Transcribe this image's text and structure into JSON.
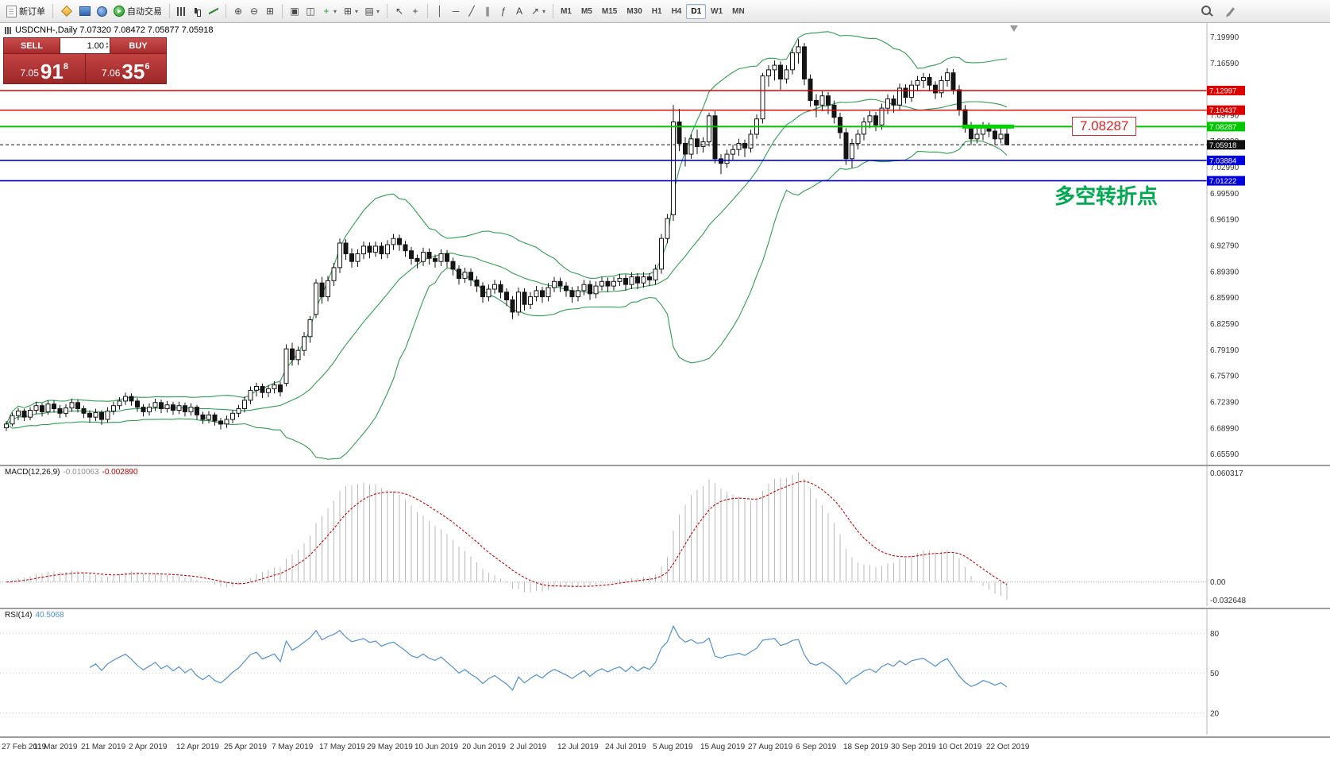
{
  "toolbar": {
    "timeframes": [
      "M1",
      "M5",
      "M15",
      "M30",
      "H1",
      "H4",
      "D1",
      "W1",
      "MN"
    ],
    "active_timeframe": "D1",
    "icon_groups": [
      {
        "items": [
          {
            "name": "new-order-button",
            "icon": "form-icon",
            "label": "新订单"
          }
        ]
      },
      {
        "items": [
          {
            "name": "charts-profile-button",
            "icon": "diamond-icon"
          },
          {
            "name": "market-watch-button",
            "icon": "monitor-icon"
          },
          {
            "name": "navigator-button",
            "icon": "navigator-icon"
          },
          {
            "name": "auto-trading-button",
            "icon": "play-icon",
            "label": "自动交易"
          }
        ]
      },
      {
        "items": [
          {
            "name": "bar-chart-button",
            "icon": "bars-icon"
          },
          {
            "name": "candle-chart-button",
            "icon": "candles-icon"
          },
          {
            "name": "line-chart-button",
            "icon": "linechart-icon"
          }
        ]
      },
      {
        "items": [
          {
            "name": "zoom-in-button",
            "icon": "zoom-in-icon",
            "glyph": "⊕"
          },
          {
            "name": "zoom-out-button",
            "icon": "zoom-out-icon",
            "glyph": "⊖"
          },
          {
            "name": "tile-windows-button",
            "icon": "tile-windows-icon",
            "glyph": "⊞"
          }
        ]
      },
      {
        "items": [
          {
            "name": "cascade-windows-button",
            "icon": "cascade-windows-icon",
            "glyph": "▣"
          },
          {
            "name": "arrange-windows-button",
            "icon": "arrange-windows-icon",
            "glyph": "◫"
          },
          {
            "name": "indicators-button",
            "icon": "indicator-plus-icon",
            "glyph": "+",
            "color": "#1d9e1d",
            "arrow": true
          },
          {
            "name": "periods-button",
            "icon": "periods-grid-icon",
            "glyph": "⊞",
            "arrow": true
          },
          {
            "name": "templates-button",
            "icon": "template-icon",
            "glyph": "▤",
            "arrow": true
          }
        ]
      },
      {
        "items": [
          {
            "name": "cursor-button",
            "icon": "cursor-icon",
            "glyph": "↖"
          },
          {
            "name": "crosshair-button",
            "icon": "crosshair-icon",
            "glyph": "+"
          }
        ]
      },
      {
        "items": [
          {
            "name": "vertical-line-button",
            "icon": "vertical-line-icon",
            "glyph": "│"
          },
          {
            "name": "horizontal-line-button",
            "icon": "horizontal-line-icon",
            "glyph": "─"
          },
          {
            "name": "trendline-button",
            "icon": "trendline-icon",
            "glyph": "╱"
          },
          {
            "name": "channel-button",
            "icon": "channel-icon",
            "glyph": "∥"
          },
          {
            "name": "fibonacci-button",
            "icon": "fibonacci-icon",
            "glyph": "ƒ"
          },
          {
            "name": "text-button",
            "icon": "text-icon",
            "glyph": "A"
          },
          {
            "name": "arrows-button",
            "icon": "arrow-icon",
            "glyph": "↗",
            "arrow": true
          }
        ]
      }
    ],
    "right_icons": [
      {
        "name": "search-button",
        "icon": "search-icon"
      },
      {
        "name": "compose-button",
        "icon": "pencil-icon"
      }
    ]
  },
  "chart": {
    "symbol_header": "USDCNH-,Daily  7.07320 7.08472 7.05877 7.05918",
    "trade_panel": {
      "sell_label": "SELL",
      "buy_label": "BUY",
      "volume": "1.00",
      "sell_price": {
        "figure": "7.05",
        "pips": "91",
        "pt": "8"
      },
      "buy_price": {
        "figure": "7.06",
        "pips": "35",
        "pt": "6"
      }
    },
    "price_axis_labels": [
      "7.19990",
      "7.16590",
      "7.13190",
      "7.09790",
      "7.06390",
      "7.02990",
      "6.99590",
      "6.96190",
      "6.92790",
      "6.89390",
      "6.85990",
      "6.82590",
      "6.79190",
      "6.75790",
      "6.72390",
      "6.68990",
      "6.65590"
    ],
    "levels": [
      {
        "label": "7.12997",
        "price": 7.12997,
        "color": "#dd0000",
        "style": "solid",
        "width": 1.4
      },
      {
        "label": "7.10437",
        "price": 7.10437,
        "color": "#dd0000",
        "style": "solid",
        "width": 1.4
      },
      {
        "label": "7.08287",
        "price": 7.08287,
        "color": "#00c800",
        "style": "solid",
        "width": 2
      },
      {
        "label": "7.05918",
        "price": 7.05918,
        "color": "#111111",
        "style": "dash",
        "width": 1
      },
      {
        "label": "7.03884",
        "price": 7.03884,
        "color": "#0000dd",
        "style": "solid",
        "width": 1.6
      },
      {
        "label": "7.01222",
        "price": 7.01222,
        "color": "#0000dd",
        "style": "solid",
        "width": 1.6
      }
    ],
    "trend_segment": {
      "price": 7.08287,
      "bar_start": 160.5,
      "bar_end": 169.2,
      "color": "#00d300",
      "width": 5
    },
    "price_tag": {
      "text": "7.08287",
      "color": "#dd2222"
    },
    "annotation": {
      "text": "多空转折点",
      "color": "#00a84f"
    }
  },
  "indicators": {
    "macd": {
      "title": "MACD(12,26,9)",
      "value_main": "-0.010063",
      "value_signal": "-0.002890",
      "axis": [
        "0.060317",
        "0.00",
        "-0.032648"
      ],
      "histogram_color": "#b9b9b9",
      "signal_color": "#cc0000"
    },
    "rsi": {
      "title": "RSI(14)",
      "value": "40.5068",
      "axis": [
        "80",
        "50",
        "20"
      ],
      "levels": [
        80,
        50,
        20
      ],
      "line_color": "#4f8fd4"
    }
  },
  "chart_data": {
    "type": "candlestick",
    "symbol": "USDCNH-",
    "timeframe": "Daily",
    "price_range": [
      6.642,
      7.218
    ],
    "bars_per_label": 8,
    "x_labels": [
      "27 Feb 2019",
      "11 Mar 2019",
      "21 Mar 2019",
      "2 Apr 2019",
      "12 Apr 2019",
      "25 Apr 2019",
      "7 May 2019",
      "17 May 2019",
      "29 May 2019",
      "10 Jun 2019",
      "20 Jun 2019",
      "2 Jul 2019",
      "12 Jul 2019",
      "24 Jul 2019",
      "5 Aug 2019",
      "15 Aug 2019",
      "27 Aug 2019",
      "6 Sep 2019",
      "18 Sep 2019",
      "30 Sep 2019",
      "10 Oct 2019",
      "22 Oct 2019"
    ],
    "overlays": {
      "bollinger": {
        "period": 20,
        "deviation": 2,
        "color": "#2f9e4f"
      }
    },
    "ohlc": [
      [
        6.69,
        6.699,
        6.686,
        6.695
      ],
      [
        6.695,
        6.71,
        6.692,
        6.706
      ],
      [
        6.706,
        6.716,
        6.7,
        6.712
      ],
      [
        6.712,
        6.715,
        6.699,
        6.704
      ],
      [
        6.704,
        6.717,
        6.7,
        6.713
      ],
      [
        6.713,
        6.724,
        6.708,
        6.719
      ],
      [
        6.719,
        6.722,
        6.705,
        6.711
      ],
      [
        6.711,
        6.726,
        6.707,
        6.721
      ],
      [
        6.721,
        6.726,
        6.71,
        6.715
      ],
      [
        6.715,
        6.72,
        6.703,
        6.709
      ],
      [
        6.709,
        6.721,
        6.704,
        6.716
      ],
      [
        6.716,
        6.728,
        6.711,
        6.723
      ],
      [
        6.723,
        6.727,
        6.71,
        6.715
      ],
      [
        6.715,
        6.719,
        6.703,
        6.709
      ],
      [
        6.709,
        6.713,
        6.697,
        6.704
      ],
      [
        6.704,
        6.715,
        6.699,
        6.71
      ],
      [
        6.71,
        6.713,
        6.694,
        6.701
      ],
      [
        6.701,
        6.717,
        6.697,
        6.712
      ],
      [
        6.712,
        6.724,
        6.707,
        6.719
      ],
      [
        6.719,
        6.73,
        6.714,
        6.725
      ],
      [
        6.725,
        6.736,
        6.72,
        6.731
      ],
      [
        6.731,
        6.735,
        6.719,
        6.725
      ],
      [
        6.725,
        6.729,
        6.711,
        6.717
      ],
      [
        6.717,
        6.721,
        6.705,
        6.711
      ],
      [
        6.711,
        6.722,
        6.706,
        6.717
      ],
      [
        6.717,
        6.728,
        6.712,
        6.723
      ],
      [
        6.723,
        6.727,
        6.709,
        6.715
      ],
      [
        6.715,
        6.725,
        6.71,
        6.72
      ],
      [
        6.72,
        6.724,
        6.707,
        6.713
      ],
      [
        6.713,
        6.724,
        6.708,
        6.719
      ],
      [
        6.719,
        6.723,
        6.705,
        6.711
      ],
      [
        6.711,
        6.722,
        6.706,
        6.717
      ],
      [
        6.717,
        6.72,
        6.701,
        6.707
      ],
      [
        6.707,
        6.711,
        6.695,
        6.701
      ],
      [
        6.701,
        6.712,
        6.696,
        6.707
      ],
      [
        6.707,
        6.71,
        6.693,
        6.699
      ],
      [
        6.699,
        6.703,
        6.688,
        6.695
      ],
      [
        6.695,
        6.706,
        6.69,
        6.701
      ],
      [
        6.701,
        6.713,
        6.696,
        6.709
      ],
      [
        6.709,
        6.72,
        6.704,
        6.715
      ],
      [
        6.715,
        6.731,
        6.71,
        6.726
      ],
      [
        6.726,
        6.744,
        6.721,
        6.739
      ],
      [
        6.739,
        6.749,
        6.731,
        6.744
      ],
      [
        6.744,
        6.748,
        6.729,
        6.736
      ],
      [
        6.736,
        6.746,
        6.73,
        6.741
      ],
      [
        6.741,
        6.751,
        6.735,
        6.746
      ],
      [
        6.746,
        6.75,
        6.731,
        6.737
      ],
      [
        6.748,
        6.799,
        6.744,
        6.793
      ],
      [
        6.793,
        6.801,
        6.771,
        6.779
      ],
      [
        6.779,
        6.796,
        6.772,
        6.791
      ],
      [
        6.791,
        6.815,
        6.784,
        6.809
      ],
      [
        6.809,
        6.836,
        6.801,
        6.831
      ],
      [
        6.838,
        6.884,
        6.833,
        6.879
      ],
      [
        6.879,
        6.887,
        6.852,
        6.861
      ],
      [
        6.861,
        6.888,
        6.855,
        6.882
      ],
      [
        6.882,
        6.905,
        6.875,
        6.899
      ],
      [
        6.899,
        6.937,
        6.892,
        6.931
      ],
      [
        6.931,
        6.936,
        6.909,
        6.917
      ],
      [
        6.917,
        6.924,
        6.899,
        6.907
      ],
      [
        6.907,
        6.923,
        6.9,
        6.917
      ],
      [
        6.917,
        6.933,
        6.91,
        6.927
      ],
      [
        6.927,
        6.932,
        6.911,
        6.919
      ],
      [
        6.919,
        6.933,
        6.913,
        6.927
      ],
      [
        6.927,
        6.932,
        6.91,
        6.917
      ],
      [
        6.917,
        6.935,
        6.911,
        6.929
      ],
      [
        6.929,
        6.943,
        6.922,
        6.937
      ],
      [
        6.937,
        6.942,
        6.921,
        6.929
      ],
      [
        6.929,
        6.934,
        6.913,
        6.921
      ],
      [
        6.921,
        6.926,
        6.903,
        6.911
      ],
      [
        6.911,
        6.916,
        6.898,
        6.907
      ],
      [
        6.907,
        6.925,
        6.901,
        6.919
      ],
      [
        6.919,
        6.924,
        6.903,
        6.911
      ],
      [
        6.911,
        6.916,
        6.899,
        6.907
      ],
      [
        6.907,
        6.923,
        6.901,
        6.917
      ],
      [
        6.917,
        6.922,
        6.899,
        6.907
      ],
      [
        6.907,
        6.912,
        6.889,
        6.897
      ],
      [
        6.897,
        6.902,
        6.877,
        6.885
      ],
      [
        6.885,
        6.899,
        6.879,
        6.893
      ],
      [
        6.893,
        6.898,
        6.875,
        6.883
      ],
      [
        6.883,
        6.888,
        6.867,
        6.875
      ],
      [
        6.875,
        6.88,
        6.853,
        6.861
      ],
      [
        6.861,
        6.877,
        6.855,
        6.871
      ],
      [
        6.871,
        6.883,
        6.865,
        6.877
      ],
      [
        6.877,
        6.882,
        6.859,
        6.867
      ],
      [
        6.867,
        6.872,
        6.849,
        6.857
      ],
      [
        6.857,
        6.862,
        6.832,
        6.841
      ],
      [
        6.841,
        6.873,
        6.836,
        6.867
      ],
      [
        6.867,
        6.872,
        6.843,
        6.851
      ],
      [
        6.851,
        6.867,
        6.845,
        6.861
      ],
      [
        6.861,
        6.875,
        6.855,
        6.869
      ],
      [
        6.869,
        6.874,
        6.853,
        6.861
      ],
      [
        6.861,
        6.879,
        6.855,
        6.873
      ],
      [
        6.873,
        6.887,
        6.867,
        6.881
      ],
      [
        6.881,
        6.886,
        6.867,
        6.875
      ],
      [
        6.875,
        6.88,
        6.861,
        6.869
      ],
      [
        6.869,
        6.874,
        6.853,
        6.861
      ],
      [
        6.861,
        6.875,
        6.855,
        6.869
      ],
      [
        6.869,
        6.883,
        6.863,
        6.877
      ],
      [
        6.877,
        6.882,
        6.857,
        6.865
      ],
      [
        6.865,
        6.881,
        6.859,
        6.875
      ],
      [
        6.875,
        6.887,
        6.869,
        6.881
      ],
      [
        6.881,
        6.886,
        6.867,
        6.875
      ],
      [
        6.875,
        6.887,
        6.869,
        6.881
      ],
      [
        6.881,
        6.891,
        6.875,
        6.885
      ],
      [
        6.885,
        6.89,
        6.869,
        6.877
      ],
      [
        6.877,
        6.893,
        6.871,
        6.887
      ],
      [
        6.887,
        6.892,
        6.871,
        6.879
      ],
      [
        6.879,
        6.893,
        6.873,
        6.887
      ],
      [
        6.887,
        6.892,
        6.875,
        6.883
      ],
      [
        6.883,
        6.903,
        6.877,
        6.897
      ],
      [
        6.897,
        6.943,
        6.891,
        6.937
      ],
      [
        6.937,
        6.969,
        6.931,
        6.963
      ],
      [
        6.968,
        7.111,
        6.96,
        7.089
      ],
      [
        7.089,
        7.106,
        7.051,
        7.061
      ],
      [
        7.061,
        7.069,
        7.031,
        7.047
      ],
      [
        7.047,
        7.073,
        7.041,
        7.067
      ],
      [
        7.067,
        7.079,
        7.047,
        7.057
      ],
      [
        7.057,
        7.069,
        7.049,
        7.063
      ],
      [
        7.063,
        7.101,
        7.057,
        7.097
      ],
      [
        7.097,
        7.103,
        7.035,
        7.041
      ],
      [
        7.041,
        7.047,
        7.021,
        7.035
      ],
      [
        7.035,
        7.053,
        7.029,
        7.047
      ],
      [
        7.047,
        7.059,
        7.039,
        7.053
      ],
      [
        7.053,
        7.067,
        7.045,
        7.061
      ],
      [
        7.061,
        7.066,
        7.043,
        7.055
      ],
      [
        7.055,
        7.079,
        7.049,
        7.073
      ],
      [
        7.073,
        7.099,
        7.067,
        7.093
      ],
      [
        7.093,
        7.153,
        7.087,
        7.149
      ],
      [
        7.149,
        7.163,
        7.135,
        7.157
      ],
      [
        7.157,
        7.169,
        7.143,
        7.163
      ],
      [
        7.163,
        7.168,
        7.131,
        7.145
      ],
      [
        7.145,
        7.163,
        7.139,
        7.157
      ],
      [
        7.157,
        7.185,
        7.151,
        7.179
      ],
      [
        7.179,
        7.197,
        7.165,
        7.187
      ],
      [
        7.187,
        7.192,
        7.137,
        7.145
      ],
      [
        7.145,
        7.151,
        7.109,
        7.117
      ],
      [
        7.117,
        7.125,
        7.095,
        7.111
      ],
      [
        7.111,
        7.129,
        7.103,
        7.123
      ],
      [
        7.123,
        7.128,
        7.099,
        7.111
      ],
      [
        7.111,
        7.117,
        7.087,
        7.095
      ],
      [
        7.095,
        7.101,
        7.067,
        7.075
      ],
      [
        7.075,
        7.081,
        7.033,
        7.041
      ],
      [
        7.041,
        7.067,
        7.029,
        7.061
      ],
      [
        7.061,
        7.079,
        7.053,
        7.073
      ],
      [
        7.073,
        7.095,
        7.065,
        7.089
      ],
      [
        7.089,
        7.103,
        7.081,
        7.097
      ],
      [
        7.097,
        7.102,
        7.077,
        7.085
      ],
      [
        7.085,
        7.113,
        7.079,
        7.107
      ],
      [
        7.107,
        7.125,
        7.099,
        7.119
      ],
      [
        7.119,
        7.124,
        7.101,
        7.111
      ],
      [
        7.111,
        7.139,
        7.105,
        7.133
      ],
      [
        7.133,
        7.138,
        7.113,
        7.121
      ],
      [
        7.121,
        7.143,
        7.115,
        7.137
      ],
      [
        7.137,
        7.149,
        7.129,
        7.143
      ],
      [
        7.143,
        7.153,
        7.133,
        7.147
      ],
      [
        7.147,
        7.152,
        7.129,
        7.137
      ],
      [
        7.137,
        7.142,
        7.119,
        7.127
      ],
      [
        7.127,
        7.149,
        7.121,
        7.143
      ],
      [
        7.143,
        7.159,
        7.135,
        7.153
      ],
      [
        7.153,
        7.158,
        7.125,
        7.131
      ],
      [
        7.131,
        7.137,
        7.097,
        7.105
      ],
      [
        7.105,
        7.111,
        7.075,
        7.083
      ],
      [
        7.083,
        7.089,
        7.059,
        7.067
      ],
      [
        7.067,
        7.081,
        7.061,
        7.073
      ],
      [
        7.073,
        7.089,
        7.065,
        7.083
      ],
      [
        7.083,
        7.088,
        7.069,
        7.077
      ],
      [
        7.077,
        7.082,
        7.059,
        7.067
      ],
      [
        7.067,
        7.081,
        7.061,
        7.073
      ],
      [
        7.0732,
        7.0847,
        7.0588,
        7.0592
      ]
    ]
  }
}
